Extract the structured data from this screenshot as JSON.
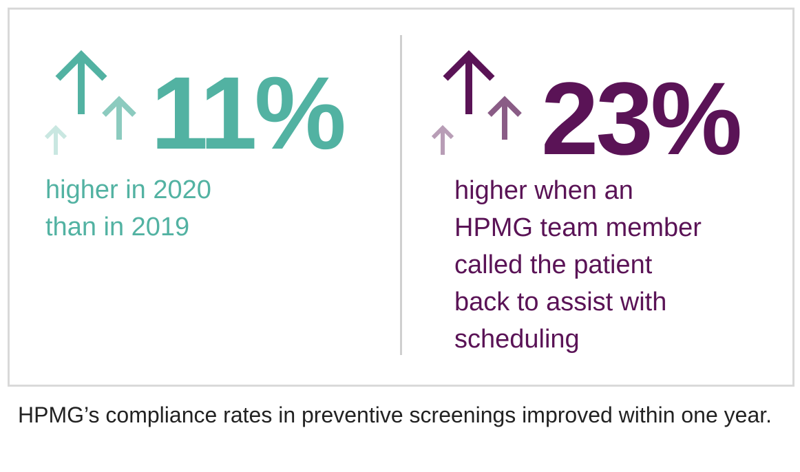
{
  "colors": {
    "teal": "#52b2a2",
    "teal_mid": "#8ccbbf",
    "teal_light": "#c9e7e1",
    "plum": "#5a1356",
    "plum_mid": "#8a5c86",
    "plum_light": "#b89db6",
    "border": "#d9d9d9",
    "divider": "#cfcfcf"
  },
  "left_stat": {
    "value": "11%",
    "description": "higher in 2020\nthan in 2019",
    "icon": "up-arrows-icon"
  },
  "right_stat": {
    "value": "23%",
    "description": "higher when an\nHPMG team member\ncalled the patient\nback to assist with\nscheduling",
    "icon": "up-arrows-icon"
  },
  "caption": "HPMG’s compliance rates in preventive screenings improved within one year."
}
